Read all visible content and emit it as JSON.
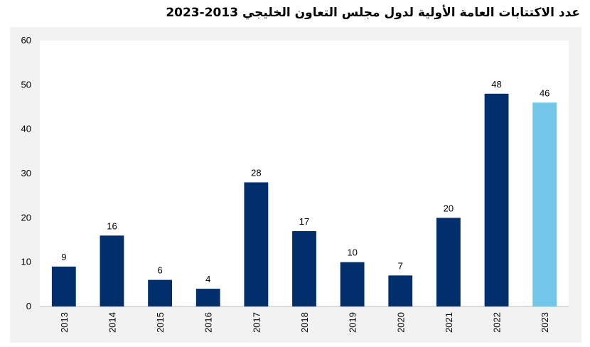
{
  "title": "عدد الاكتتابات العامة الأولية لدول مجلس التعاون الخليجي 2013-2023",
  "chart_data": {
    "type": "bar",
    "title": "عدد الاكتتابات العامة الأولية لدول مجلس التعاون الخليجي 2013-2023",
    "categories": [
      "2013",
      "2014",
      "2015",
      "2016",
      "2017",
      "2018",
      "2019",
      "2020",
      "2021",
      "2022",
      "2023"
    ],
    "values": [
      9,
      16,
      6,
      4,
      28,
      17,
      10,
      7,
      20,
      48,
      46
    ],
    "labels": [
      "9",
      "16",
      "6",
      "4",
      "28",
      "17",
      "10",
      "7",
      "20",
      "48",
      "46"
    ],
    "y_ticks": [
      0,
      10,
      20,
      30,
      40,
      50,
      60
    ],
    "y_tick_labels": [
      "0",
      "10",
      "20",
      "30",
      "40",
      "50",
      "60"
    ],
    "ylim": [
      0,
      60
    ],
    "xlabel": "",
    "ylabel": "",
    "grid": false,
    "legend": "none",
    "colors": {
      "bar": "#002f6c",
      "highlight_bar": "#74c6e9",
      "plot_background": "#ffffff",
      "chart_background": "#f2f2f2"
    },
    "highlight_index": 10
  }
}
